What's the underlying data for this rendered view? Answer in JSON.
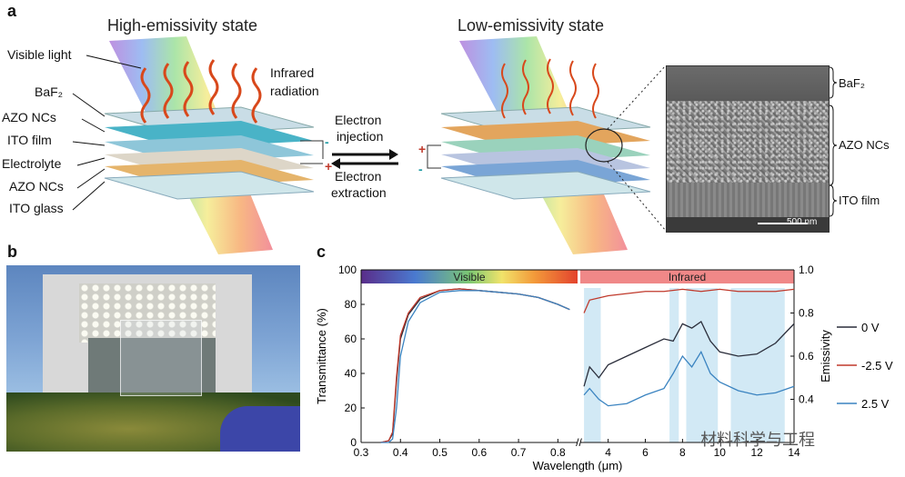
{
  "panel_a": {
    "letter": "a",
    "left_title": "High-emissivity state",
    "right_title": "Low-emissivity state",
    "left_labels": [
      "Visible light",
      "BaF₂",
      "AZO NCs",
      "ITO film",
      "Electrolyte",
      "AZO NCs",
      "ITO glass"
    ],
    "infrared_line1": "Infrared",
    "infrared_line2": "radiation",
    "injection_line1": "Electron",
    "injection_line2": "injection",
    "extraction_line1": "Electron",
    "extraction_line2": "extraction",
    "tem_labels": [
      "BaF₂",
      "AZO NCs",
      "ITO film"
    ],
    "scale_bar": "500 nm",
    "plus": "+",
    "minus": "-"
  },
  "panel_b": {
    "letter": "b"
  },
  "panel_c": {
    "letter": "c"
  },
  "watermark": "材料科学与工程",
  "colors": {
    "ir_arrow": "#e0561f",
    "visible_bar_start": "#5a2d8a",
    "infrared_bar": "#f08888"
  },
  "chart_data": {
    "type": "line",
    "title": "",
    "xlabel": "Wavelength (μm)",
    "ylabel_left": "Transmittance (%)",
    "ylabel_right": "Emissivity",
    "left_axis": {
      "xlim": [
        0.3,
        0.85
      ],
      "xticks": [
        "0.3",
        "0.4",
        "0.5",
        "0.6",
        "0.7",
        "0.8"
      ],
      "ylim": [
        0,
        100
      ],
      "yticks": [
        "0",
        "20",
        "40",
        "60",
        "80",
        "100"
      ]
    },
    "right_axis": {
      "xlim": [
        2.5,
        14
      ],
      "xticks": [
        "4",
        "6",
        "8",
        "10",
        "12",
        "14"
      ],
      "ylim": [
        0.2,
        1.0
      ],
      "yticks": [
        "0.4",
        "0.6",
        "0.8",
        "1.0"
      ]
    },
    "bands": [
      {
        "name": "Visible"
      },
      {
        "name": "Infrared"
      }
    ],
    "legend": {
      "position": "right",
      "entries": [
        "0   V",
        "-2.5 V",
        "2.5 V"
      ]
    },
    "series": [
      {
        "name": "0   V",
        "color": "#2a2d3a",
        "vis_x": [
          0.35,
          0.37,
          0.38,
          0.39,
          0.4,
          0.42,
          0.45,
          0.5,
          0.55,
          0.6,
          0.65,
          0.7,
          0.75,
          0.8,
          0.83
        ],
        "vis_y": [
          0,
          1,
          5,
          35,
          60,
          74,
          83,
          88,
          89,
          88,
          87,
          86,
          84,
          80,
          77
        ],
        "ir_x": [
          2.7,
          3.0,
          3.5,
          4.0,
          5.0,
          6.0,
          7.0,
          7.5,
          8.0,
          8.5,
          9.0,
          9.5,
          10.0,
          11.0,
          12.0,
          13.0,
          14.0
        ],
        "ir_y": [
          0.46,
          0.55,
          0.5,
          0.56,
          0.6,
          0.64,
          0.68,
          0.67,
          0.75,
          0.73,
          0.76,
          0.67,
          0.62,
          0.6,
          0.61,
          0.66,
          0.75
        ]
      },
      {
        "name": "-2.5 V",
        "color": "#c0392b",
        "vis_x": [
          0.35,
          0.37,
          0.38,
          0.39,
          0.4,
          0.42,
          0.45,
          0.5,
          0.55,
          0.6,
          0.65,
          0.7,
          0.75,
          0.8,
          0.83
        ],
        "vis_y": [
          0,
          1,
          6,
          38,
          62,
          75,
          84,
          88,
          89,
          88,
          87,
          86,
          84,
          80,
          77
        ],
        "ir_x": [
          2.7,
          3.0,
          4.0,
          5.0,
          6.0,
          7.0,
          8.0,
          9.0,
          10.0,
          11.0,
          12.0,
          13.0,
          14.0
        ],
        "ir_y": [
          0.8,
          0.86,
          0.88,
          0.89,
          0.9,
          0.9,
          0.91,
          0.9,
          0.91,
          0.9,
          0.9,
          0.9,
          0.91
        ]
      },
      {
        "name": "2.5 V",
        "color": "#3a83c0",
        "vis_x": [
          0.35,
          0.37,
          0.38,
          0.39,
          0.4,
          0.42,
          0.45,
          0.5,
          0.55,
          0.6,
          0.65,
          0.7,
          0.75,
          0.8,
          0.83
        ],
        "vis_y": [
          0,
          0,
          2,
          20,
          50,
          70,
          81,
          87,
          88,
          88,
          87,
          86,
          84,
          80,
          77
        ],
        "ir_x": [
          2.7,
          3.0,
          3.5,
          4.0,
          5.0,
          6.0,
          7.0,
          7.5,
          8.0,
          8.5,
          9.0,
          9.5,
          10.0,
          11.0,
          12.0,
          13.0,
          14.0
        ],
        "ir_y": [
          0.42,
          0.45,
          0.4,
          0.37,
          0.38,
          0.42,
          0.45,
          0.52,
          0.6,
          0.55,
          0.62,
          0.52,
          0.48,
          0.44,
          0.42,
          0.43,
          0.46
        ]
      }
    ]
  }
}
